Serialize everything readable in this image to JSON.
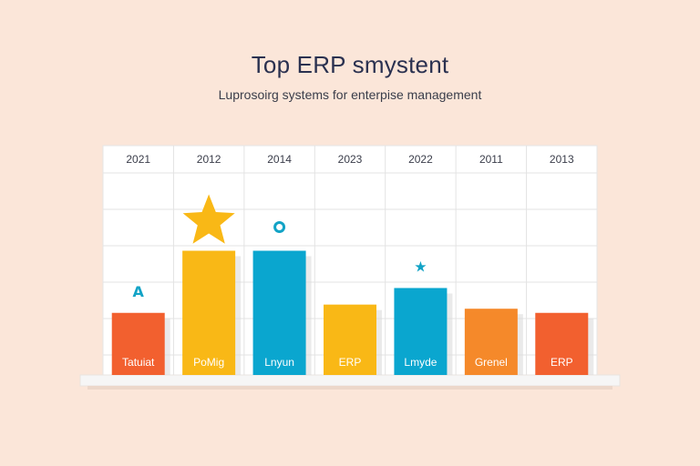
{
  "chart_data": {
    "type": "bar",
    "title": "Top ERP smystent",
    "subtitle": "Luprosoirg systems for enterpise management",
    "categories": [
      "2021",
      "2012",
      "2014",
      "2023",
      "2022",
      "2011",
      "2013"
    ],
    "series": [
      {
        "values": [
          1.5,
          3.0,
          3.0,
          1.7,
          2.1,
          1.6,
          1.5
        ]
      }
    ],
    "bar_labels": [
      "Tatuiat",
      "PoMig",
      "Lnyun",
      "ERP",
      "Lmyde",
      "Grenel",
      "ERP"
    ],
    "bar_colors": [
      "#f2602f",
      "#f9b816",
      "#0aa6cf",
      "#f9b816",
      "#0aa6cf",
      "#f5892a",
      "#f2602f"
    ],
    "markers": [
      {
        "index": 0,
        "glyph": "A",
        "icon": "letter-a-icon",
        "color": "#12a3c6"
      },
      {
        "index": 1,
        "glyph": "★",
        "icon": "star-icon",
        "color": "#f9b816"
      },
      {
        "index": 2,
        "glyph": "●",
        "icon": "circle-icon",
        "color": "#12a3c6"
      },
      {
        "index": 4,
        "glyph": "★",
        "icon": "small-star-icon",
        "color": "#12a3c6"
      }
    ],
    "ylim": [
      0,
      4
    ],
    "grid": true,
    "xlabel": "",
    "ylabel": ""
  }
}
